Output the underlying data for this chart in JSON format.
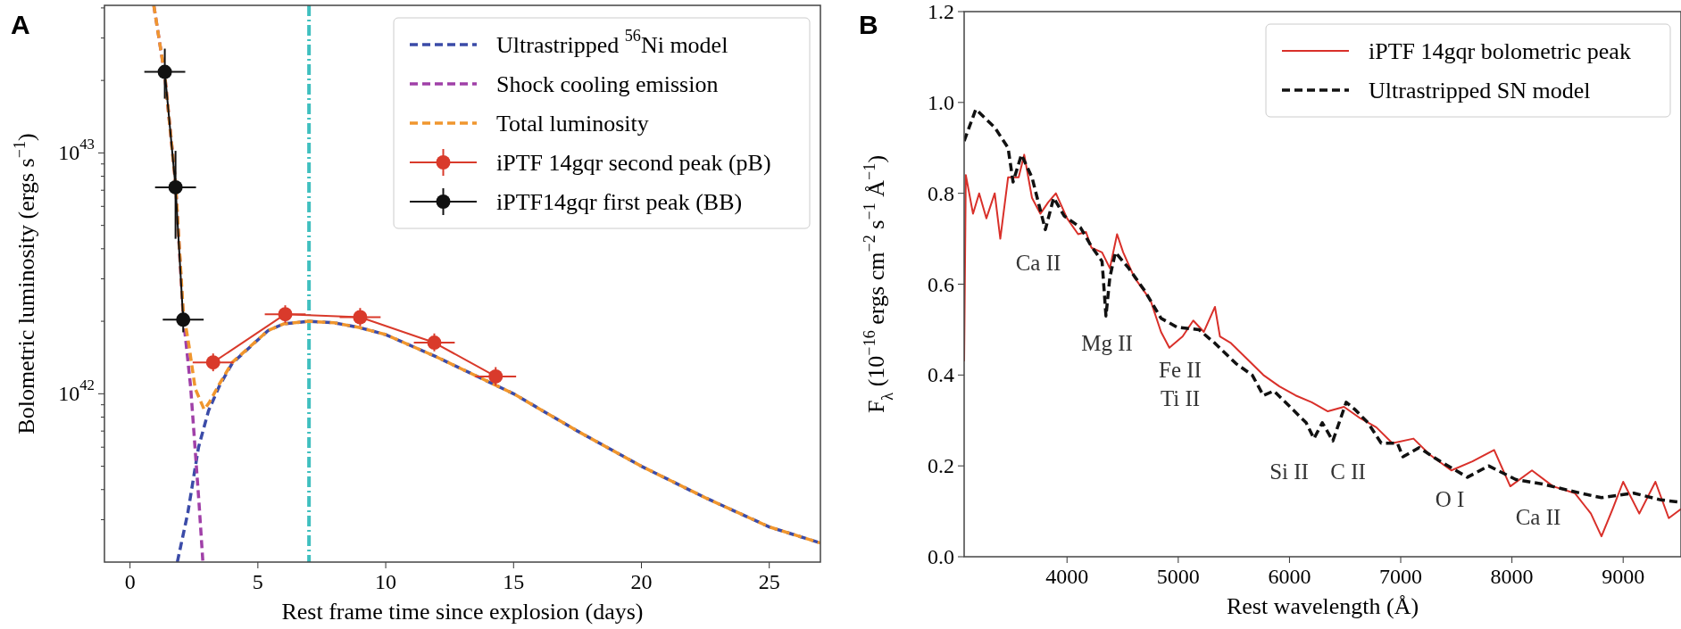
{
  "chart_data": [
    {
      "type": "line",
      "title": "A",
      "xlabel": "Rest frame time since explosion (days)",
      "ylabel": "Bolometric luminosity (ergs s$^{−1}$)",
      "log": "y",
      "xlim": [
        -1,
        27
      ],
      "xticks": [
        0,
        5,
        10,
        15,
        20,
        25
      ],
      "ylim": [
        2e+41,
        4.1e+43
      ],
      "yticks": [
        {
          "value": 3e+41,
          "label": null
        },
        {
          "value": 4e+41,
          "label": null
        },
        {
          "value": 5e+41,
          "label": null
        },
        {
          "value": 6e+41,
          "label": null
        },
        {
          "value": 7e+41,
          "label": null
        },
        {
          "value": 8e+41,
          "label": null
        },
        {
          "value": 9e+41,
          "label": null
        },
        {
          "value": 1e+42,
          "label": "10$^{42}$"
        },
        {
          "value": 2e+42,
          "label": null
        },
        {
          "value": 3e+42,
          "label": null
        },
        {
          "value": 4e+42,
          "label": null
        },
        {
          "value": 5e+42,
          "label": null
        },
        {
          "value": 6e+42,
          "label": null
        },
        {
          "value": 7e+42,
          "label": null
        },
        {
          "value": 8e+42,
          "label": null
        },
        {
          "value": 9e+42,
          "label": null
        },
        {
          "value": 1e+43,
          "label": "10$^{43}$"
        },
        {
          "value": 2e+43,
          "label": null
        },
        {
          "value": 3e+43,
          "label": null
        },
        {
          "value": 4e+43,
          "label": null
        }
      ],
      "legend": "top right",
      "line_style": "dashed",
      "ref_lines": [
        {
          "axis": "x",
          "value": 7,
          "color": "#3fbfbf",
          "line_style": "dashdot"
        }
      ],
      "series": [
        {
          "name": "Ultrastripped $^{56}$Ni model",
          "color": "#3b4ba8",
          "x": [
            1.85,
            2.26,
            2.68,
            3.07,
            3.5,
            4.0,
            5.4,
            6,
            7,
            8,
            9,
            10,
            12,
            15,
            17.5,
            20,
            22.5,
            25,
            27
          ],
          "values": [
            2e+41,
            3.2e+41,
            6e+41,
            8.5e+41,
            1.08e+42,
            1.34e+42,
            1.83e+42,
            1.95e+42,
            2e+42,
            1.97e+42,
            1.88e+42,
            1.76e+42,
            1.42e+42,
            1e+42,
            7e+41,
            5e+41,
            3.7e+41,
            2.8e+41,
            2.4e+41
          ]
        },
        {
          "name": "Shock cooling emission",
          "color": "#a040a8",
          "x": [
            0.93,
            1.36,
            1.78,
            2.08,
            2.37,
            2.5,
            2.7,
            2.85
          ],
          "values": [
            4.1e+43,
            2.1e+43,
            7.5e+42,
            2.1e+42,
            1.07e+42,
            6.9e+41,
            3.5e+41,
            2e+41
          ]
        },
        {
          "name": "Total luminosity",
          "color": "#f0962e",
          "x": [
            0.93,
            1.36,
            1.78,
            2.08,
            2.3,
            2.55,
            2.9,
            3.1,
            3.5,
            4.0,
            5.4,
            6,
            7,
            8,
            9,
            10,
            12,
            15,
            17.5,
            20,
            22.5,
            25,
            27
          ],
          "values": [
            4.1e+43,
            2.1e+43,
            7.5e+42,
            2.2e+42,
            1.6e+42,
            1.05e+42,
            8.6e+41,
            9.2e+41,
            1.1e+42,
            1.35e+42,
            1.83e+42,
            1.95e+42,
            2e+42,
            1.97e+42,
            1.88e+42,
            1.76e+42,
            1.42e+42,
            1e+42,
            7e+41,
            5e+41,
            3.7e+41,
            2.8e+41,
            2.4e+41
          ]
        },
        {
          "name": "iPTF 14gqr second peak (pB)",
          "color": "#d93a2b",
          "line_style": "solid",
          "marker": "circle",
          "x": [
            3.25,
            6.07,
            9.0,
            11.9,
            14.3
          ],
          "values": [
            1.35e+42,
            2.14e+42,
            2.08e+42,
            1.63e+42,
            1.18e+42
          ],
          "errors": [
            [
              1.24e+42,
              1.47e+42
            ],
            [
              1.97e+42,
              2.33e+42
            ],
            [
              1.91e+42,
              2.27e+42
            ],
            [
              1.5e+42,
              1.78e+42
            ],
            [
              1.08e+42,
              1.29e+42
            ]
          ],
          "xerrors": [
            0.8,
            0.8,
            0.8,
            0.8,
            0.8
          ]
        },
        {
          "name": "iPTF14gqr first peak (BB)",
          "color": "#111111",
          "line_style": "solid",
          "marker": "circle",
          "x": [
            1.36,
            1.78,
            2.08
          ],
          "values": [
            2.17e+43,
            7.2e+42,
            2.03e+42
          ],
          "errors": [
            [
              1.68e+43,
              2.71e+43
            ],
            [
              4.4e+42,
              1.02e+43
            ],
            [
              1.8e+42,
              2.2e+42
            ]
          ],
          "xerrors": [
            0.8,
            0.8,
            0.8
          ]
        }
      ]
    },
    {
      "type": "line",
      "title": "B",
      "xlabel": "Rest wavelength (Å)",
      "ylabel": "F$_{λ}$ (10$^{−16}$ ergs cm$^{−2}$ s$^{−1}$ Å$^{−1}$)",
      "xlim": [
        3075,
        9520
      ],
      "xticks": [
        4000,
        5000,
        6000,
        7000,
        8000,
        9000
      ],
      "ylim": [
        0,
        1.2
      ],
      "yticks": [
        {
          "value": 0,
          "label": "0.0"
        },
        0.2,
        0.4,
        0.6,
        0.8,
        {
          "value": 1,
          "label": "1.0"
        },
        1.2
      ],
      "legend": "top right",
      "series": [
        {
          "name": "iPTF 14gqr bolometric peak",
          "color": "#d9302a",
          "line_style": "solid",
          "x": [
            3075,
            3090,
            3155,
            3210,
            3275,
            3350,
            3400,
            3470,
            3565,
            3615,
            3685,
            3760,
            3830,
            3900,
            4000,
            4100,
            4170,
            4220,
            4315,
            4385,
            4450,
            4505,
            4605,
            4750,
            4845,
            4920,
            5040,
            5135,
            5230,
            5330,
            5375,
            5475,
            5620,
            5765,
            5910,
            6055,
            6200,
            6345,
            6490,
            6635,
            6780,
            6925,
            7115,
            7260,
            7455,
            7645,
            7840,
            7985,
            8180,
            8370,
            8565,
            8710,
            8805,
            8905,
            9000,
            9145,
            9290,
            9410,
            9520
          ],
          "values": [
            0.43,
            0.84,
            0.755,
            0.8,
            0.745,
            0.8,
            0.7,
            0.835,
            0.835,
            0.885,
            0.79,
            0.755,
            0.78,
            0.8,
            0.745,
            0.71,
            0.715,
            0.68,
            0.67,
            0.635,
            0.71,
            0.67,
            0.615,
            0.565,
            0.495,
            0.46,
            0.485,
            0.52,
            0.495,
            0.55,
            0.485,
            0.47,
            0.435,
            0.4,
            0.375,
            0.355,
            0.34,
            0.32,
            0.33,
            0.305,
            0.285,
            0.25,
            0.26,
            0.225,
            0.19,
            0.21,
            0.235,
            0.155,
            0.19,
            0.155,
            0.14,
            0.095,
            0.045,
            0.105,
            0.165,
            0.095,
            0.165,
            0.085,
            0.105
          ]
        },
        {
          "name": "Ultrastripped SN model",
          "color": "#111111",
          "line_style": "dashed",
          "x": [
            3075,
            3180,
            3350,
            3470,
            3515,
            3590,
            3685,
            3805,
            3880,
            3975,
            4120,
            4215,
            4315,
            4350,
            4385,
            4435,
            4555,
            4700,
            4845,
            4990,
            5185,
            5330,
            5520,
            5665,
            5765,
            5860,
            6005,
            6150,
            6220,
            6295,
            6390,
            6510,
            6585,
            6705,
            6825,
            6970,
            7020,
            7165,
            7355,
            7600,
            7790,
            8035,
            8275,
            8615,
            8805,
            9095,
            9340,
            9520
          ],
          "values": [
            0.915,
            0.985,
            0.945,
            0.9,
            0.825,
            0.885,
            0.835,
            0.72,
            0.79,
            0.75,
            0.725,
            0.685,
            0.65,
            0.53,
            0.615,
            0.67,
            0.635,
            0.585,
            0.525,
            0.505,
            0.5,
            0.47,
            0.425,
            0.4,
            0.355,
            0.365,
            0.33,
            0.295,
            0.26,
            0.295,
            0.255,
            0.34,
            0.325,
            0.295,
            0.25,
            0.25,
            0.22,
            0.24,
            0.21,
            0.175,
            0.2,
            0.17,
            0.16,
            0.14,
            0.13,
            0.14,
            0.125,
            0.12
          ]
        }
      ],
      "annotations": [
        "Ca II",
        "Mg II",
        "Fe II",
        "Ti II",
        "Si II",
        "C II",
        "O I",
        "Ca II"
      ]
    }
  ]
}
